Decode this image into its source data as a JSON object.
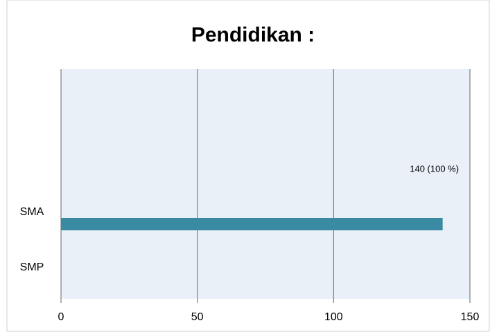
{
  "chart_data": {
    "type": "bar",
    "orientation": "horizontal",
    "title": "Pendidikan :",
    "categories": [
      "SMA",
      "SMP"
    ],
    "values": [
      140,
      0
    ],
    "value_labels": [
      "140  (100 %)",
      null
    ],
    "color": "#3a8aa3",
    "xlim": [
      0,
      150
    ],
    "xticks": [
      0,
      50,
      100,
      150
    ],
    "grid": true
  }
}
